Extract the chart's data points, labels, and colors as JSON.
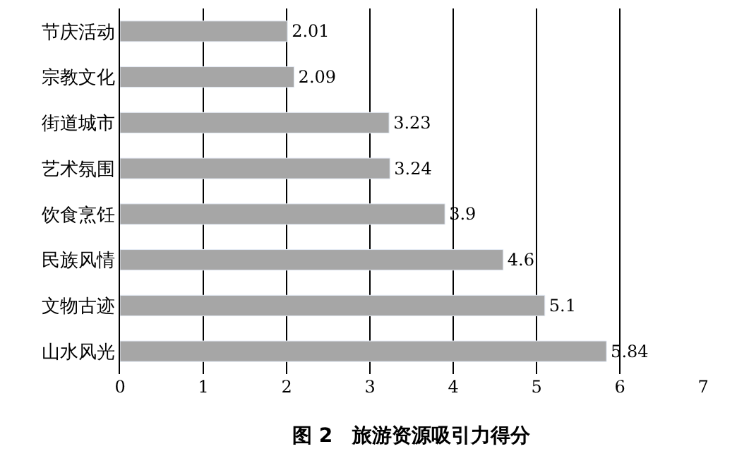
{
  "chart_data": {
    "type": "bar",
    "orientation": "horizontal",
    "title": "图 2　旅游资源吸引力得分",
    "categories": [
      "节庆活动",
      "宗教文化",
      "街道城市",
      "艺术氛围",
      "饮食烹饪",
      "民族风情",
      "文物古迹",
      "山水风光"
    ],
    "values": [
      2.01,
      2.09,
      3.23,
      3.24,
      3.9,
      4.6,
      5.1,
      5.84
    ],
    "color": "#a6a6a6",
    "xlim": [
      0,
      7
    ],
    "xticks": [
      0,
      1,
      2,
      3,
      4,
      5,
      6,
      7
    ],
    "grid": "x",
    "data_labels": true
  }
}
